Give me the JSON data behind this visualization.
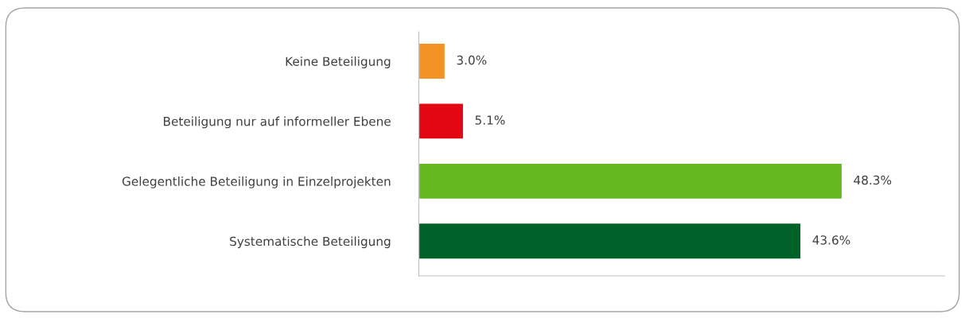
{
  "chart_data": {
    "type": "bar",
    "orientation": "horizontal",
    "categories": [
      "Keine Beteiligung",
      "Beteiligung nur auf informeller Ebene",
      "Gelegentliche Beteiligung in Einzelprojekten",
      "Systematische Beteiligung"
    ],
    "values": [
      3.0,
      5.1,
      48.3,
      43.6
    ],
    "colors": [
      "#f39325",
      "#e30613",
      "#66b821",
      "#006228"
    ],
    "value_labels": [
      "3.0%",
      "5.1%",
      "48.3%",
      "43.6%"
    ],
    "xlim": [
      0,
      60
    ],
    "tick_labels": "y",
    "grid": false,
    "legend": false
  }
}
